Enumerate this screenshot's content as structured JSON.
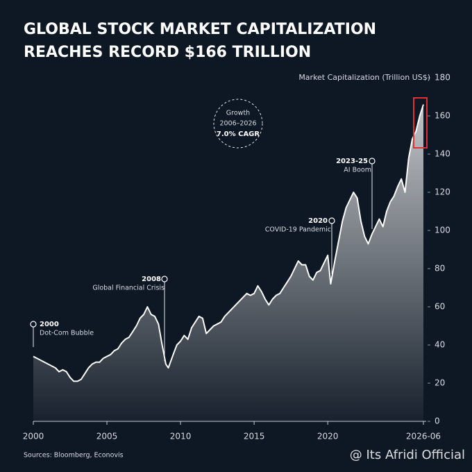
{
  "chart_data": {
    "type": "area",
    "title": [
      "GLOBAL STOCK MARKET CAPITALIZATION",
      "REACHES RECORD $166 TRILLION"
    ],
    "y_label": "Market Capitalization (Trillion US$)",
    "source": "Sources: Bloomberg, Econovis",
    "watermark": "@ Its Afridi Official",
    "annotations": [
      {
        "lines": [
          "2000",
          "Dot-Com Bubble"
        ]
      },
      {
        "lines": [
          "2008",
          "Global Financial Crisis"
        ]
      },
      {
        "lines": [
          "2020",
          "COVID-19 Pandemic"
        ]
      },
      {
        "lines": [
          "2023-25",
          "AI Boom"
        ]
      },
      {
        "lines": [
          "Growth",
          "2006–2026",
          "7.0% CAGR"
        ]
      }
    ],
    "xlim": [
      2000,
      2026.5
    ],
    "xticks": [
      2000,
      2005,
      2010,
      2015,
      2020,
      {
        "value": 2026.5,
        "label": "2026-06"
      }
    ],
    "ylim": [
      0,
      180
    ],
    "yticks": [
      0,
      20,
      40,
      60,
      80,
      100,
      120,
      140,
      160,
      180
    ],
    "series": [
      {
        "color": "#ffffff",
        "x": [
          2000,
          2000.25,
          2000.5,
          2000.75,
          2001,
          2001.25,
          2001.5,
          2001.75,
          2002,
          2002.25,
          2002.5,
          2002.75,
          2003,
          2003.25,
          2003.5,
          2003.75,
          2004,
          2004.25,
          2004.5,
          2004.75,
          2005,
          2005.25,
          2005.5,
          2005.75,
          2006,
          2006.25,
          2006.5,
          2006.75,
          2007,
          2007.25,
          2007.5,
          2007.75,
          2008,
          2008.25,
          2008.5,
          2008.75,
          2009,
          2009.17,
          2009.5,
          2009.75,
          2010,
          2010.25,
          2010.5,
          2010.75,
          2011,
          2011.25,
          2011.5,
          2011.75,
          2012,
          2012.25,
          2012.5,
          2012.75,
          2013,
          2013.25,
          2013.5,
          2013.75,
          2014,
          2014.25,
          2014.5,
          2014.75,
          2015,
          2015.25,
          2015.5,
          2015.75,
          2016,
          2016.25,
          2016.5,
          2016.75,
          2017,
          2017.25,
          2017.5,
          2017.75,
          2018,
          2018.25,
          2018.5,
          2018.75,
          2019,
          2019.25,
          2019.5,
          2019.75,
          2020,
          2020.2,
          2020.5,
          2020.75,
          2021,
          2021.25,
          2021.5,
          2021.75,
          2022,
          2022.25,
          2022.5,
          2022.75,
          2023,
          2023.25,
          2023.5,
          2023.75,
          2024,
          2024.25,
          2024.5,
          2024.75,
          2025,
          2025.25,
          2025.5,
          2025.75,
          2026,
          2026.25,
          2026.5
        ],
        "values": [
          34,
          33,
          32,
          31,
          30,
          29,
          28,
          26,
          27,
          26,
          23,
          21,
          21,
          22,
          25,
          28,
          30,
          31,
          31,
          33,
          34,
          35,
          37,
          38,
          41,
          43,
          44,
          47,
          50,
          54,
          56,
          60,
          56,
          55,
          51,
          40,
          30,
          28,
          35,
          40,
          42,
          45,
          43,
          49,
          52,
          55,
          54,
          46,
          48,
          50,
          51,
          52,
          55,
          57,
          59,
          61,
          63,
          65,
          67,
          66,
          67,
          71,
          68,
          64,
          61,
          64,
          66,
          67,
          70,
          73,
          76,
          80,
          84,
          82,
          82,
          76,
          74,
          78,
          79,
          83,
          87,
          72,
          85,
          95,
          105,
          112,
          116,
          120,
          117,
          105,
          97,
          93,
          98,
          102,
          106,
          102,
          110,
          115,
          118,
          123,
          127,
          120,
          138,
          148,
          152,
          160,
          166
        ]
      }
    ]
  }
}
